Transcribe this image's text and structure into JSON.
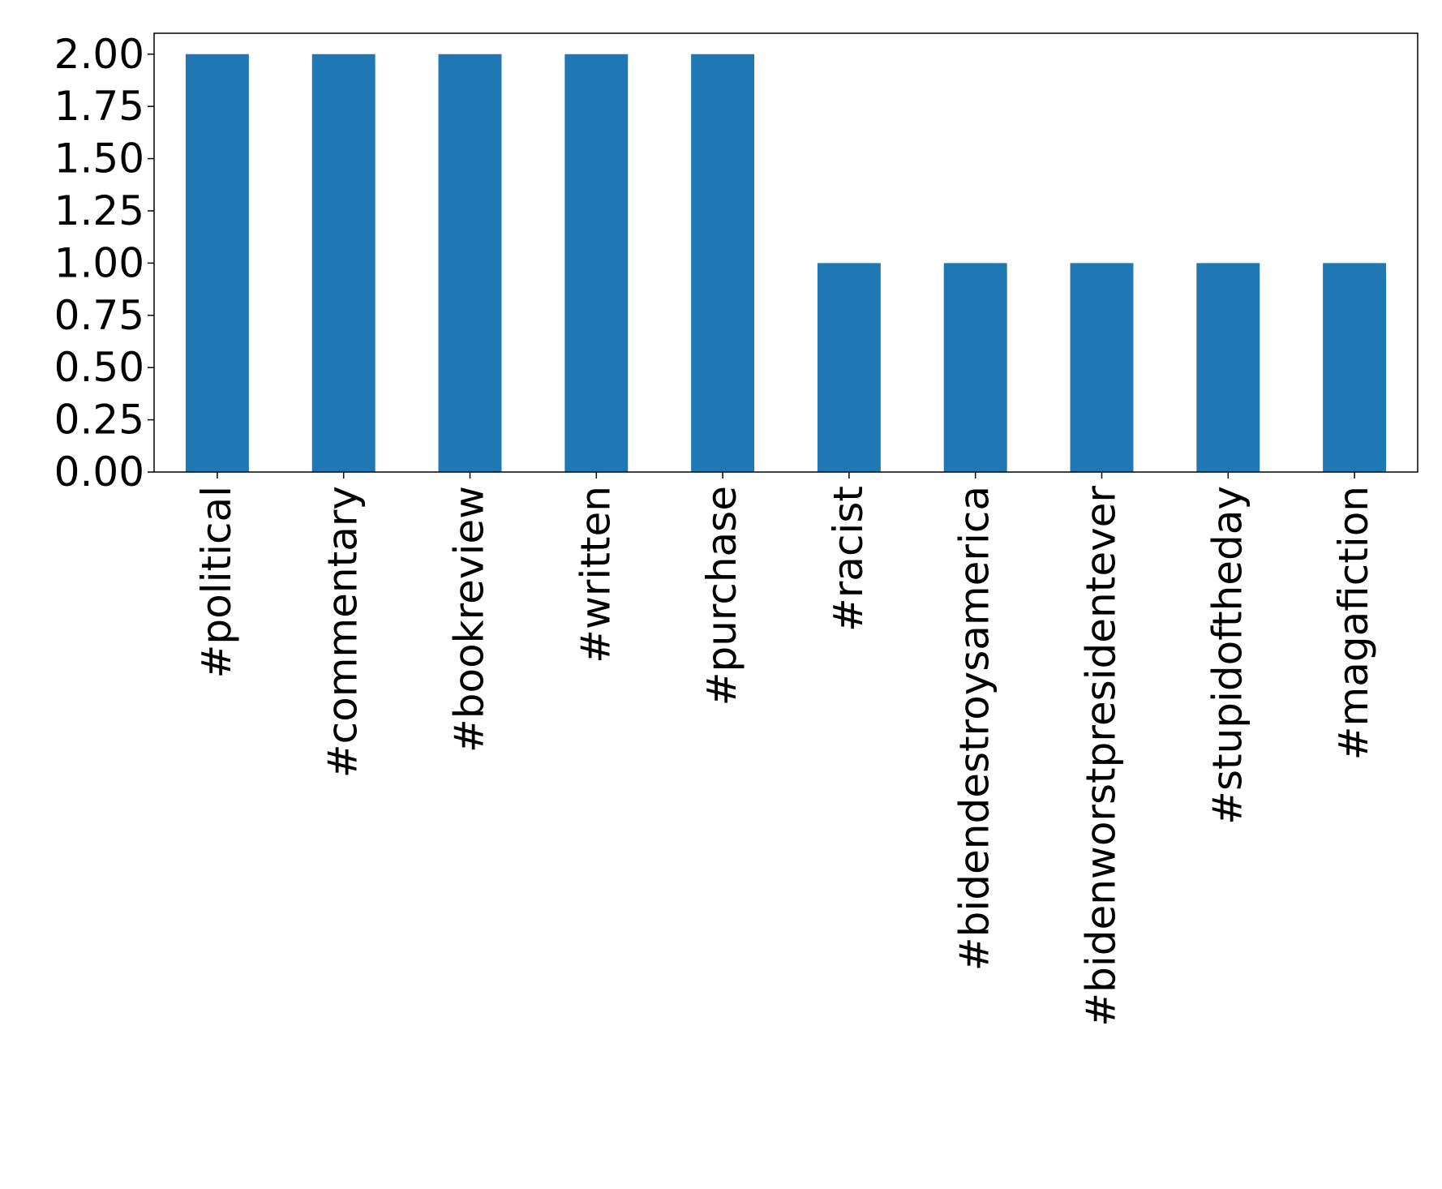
{
  "chart_data": {
    "type": "bar",
    "title": "",
    "xlabel": "",
    "ylabel": "",
    "categories": [
      "#political",
      "#commentary",
      "#bookreview",
      "#written",
      "#purchase",
      "#racist",
      "#bidendestroysamerica",
      "#bidenworstpresidentever",
      "#stupidoftheday",
      "#magafiction"
    ],
    "values": [
      2,
      2,
      2,
      2,
      2,
      1,
      1,
      1,
      1,
      1
    ],
    "ylim": [
      0,
      2.1
    ],
    "yticks": [
      "0.00",
      "0.25",
      "0.50",
      "0.75",
      "1.00",
      "1.25",
      "1.50",
      "1.75",
      "2.00"
    ],
    "grid": false,
    "legend": "none",
    "bar_color": "#1f77b4"
  }
}
